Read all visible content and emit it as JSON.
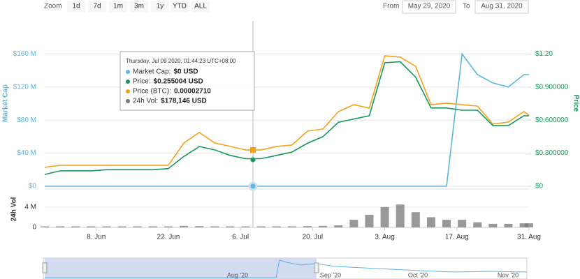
{
  "ui": {
    "zoom_label": "Zoom",
    "buttons": [
      "1d",
      "7d",
      "1m",
      "3m",
      "1y",
      "YTD",
      "ALL"
    ],
    "from_label": "From",
    "from_value": "May 29, 2020",
    "to_label": "To",
    "to_value": "Aug 31, 2020",
    "navigator_labels": [
      "Aug '20",
      "Sep '20",
      "Oct '20",
      "Nov '20"
    ]
  },
  "chart_data": {
    "type": "line",
    "ylabel": "Market Cap",
    "y2label": "Price",
    "vol_label": "24h Vol",
    "x": [
      "2020-05-29",
      "2020-06-01",
      "2020-06-04",
      "2020-06-07",
      "2020-06-10",
      "2020-06-13",
      "2020-06-16",
      "2020-06-19",
      "2020-06-22",
      "2020-06-25",
      "2020-06-28",
      "2020-07-01",
      "2020-07-04",
      "2020-07-07",
      "2020-07-10",
      "2020-07-13",
      "2020-07-16",
      "2020-07-19",
      "2020-07-22",
      "2020-07-25",
      "2020-07-28",
      "2020-07-31",
      "2020-08-03",
      "2020-08-06",
      "2020-08-09",
      "2020-08-12",
      "2020-08-15",
      "2020-08-18",
      "2020-08-21",
      "2020-08-24",
      "2020-08-27",
      "2020-08-30",
      "2020-08-31"
    ],
    "xlim": [
      "2020-05-29",
      "2020-08-31"
    ],
    "xticks": [
      {
        "value": "2020-06-08",
        "label": "8. Jun"
      },
      {
        "value": "2020-06-22",
        "label": "22. Jun"
      },
      {
        "value": "2020-07-06",
        "label": "6. Jul"
      },
      {
        "value": "2020-07-20",
        "label": "20. Jul"
      },
      {
        "value": "2020-08-03",
        "label": "3. Aug"
      },
      {
        "value": "2020-08-17",
        "label": "17. Aug"
      },
      {
        "value": "2020-08-31",
        "label": "31. Aug"
      }
    ],
    "ylim": [
      0,
      200000000
    ],
    "yticks": [
      {
        "value": 0,
        "label": "$0"
      },
      {
        "value": 40000000,
        "label": "$40 M"
      },
      {
        "value": 80000000,
        "label": "$80 M"
      },
      {
        "value": 120000000,
        "label": "$120 M"
      },
      {
        "value": 160000000,
        "label": "$160 M"
      }
    ],
    "y2lim": [
      0,
      1.5
    ],
    "y2ticks": [
      {
        "value": 0,
        "label": "$0"
      },
      {
        "value": 0.3,
        "label": "$0.300000"
      },
      {
        "value": 0.6,
        "label": "$0.600000"
      },
      {
        "value": 0.9,
        "label": "$0.900000"
      },
      {
        "value": 1.2,
        "label": "$1.20"
      }
    ],
    "y3lim": [
      0,
      0.00012
    ],
    "vollim": [
      0,
      7000000
    ],
    "volticks": [
      {
        "value": 0,
        "label": "0"
      },
      {
        "value": 4000000,
        "label": "4 M"
      }
    ],
    "grid": true,
    "series": [
      {
        "color": "#5bb6e3",
        "values": [
          0,
          0,
          0,
          0,
          0,
          0,
          0,
          0,
          0,
          0,
          0,
          0,
          0,
          0,
          0,
          0,
          0,
          0,
          0,
          0,
          0,
          0,
          0,
          0,
          0,
          0,
          0,
          160000000,
          135000000,
          125000000,
          120000000,
          135000000,
          135000000
        ]
      },
      {
        "color": "#17985a",
        "axis": "y2",
        "values": [
          0.107,
          0.14,
          0.14,
          0.14,
          0.15,
          0.15,
          0.15,
          0.15,
          0.16,
          0.27,
          0.36,
          0.33,
          0.28,
          0.25,
          0.25,
          0.28,
          0.31,
          0.39,
          0.45,
          0.58,
          0.61,
          0.64,
          1.12,
          1.13,
          0.99,
          0.71,
          0.71,
          0.69,
          0.69,
          0.55,
          0.55,
          0.64,
          0.64
        ]
      },
      {
        "color": "#f4a11c",
        "axis": "y3",
        "values": [
          1.37e-05,
          1.52e-05,
          1.52e-05,
          1.52e-05,
          1.52e-05,
          1.52e-05,
          1.52e-05,
          1.52e-05,
          1.52e-05,
          3.14e-05,
          3.9e-05,
          3.14e-05,
          2.89e-05,
          2.63e-05,
          2.63e-05,
          2.89e-05,
          2.99e-05,
          4e-05,
          4.15e-05,
          5.42e-05,
          5.92e-05,
          5.67e-05,
          9.47e-05,
          9.37e-05,
          8.71e-05,
          5.92e-05,
          6.03e-05,
          5.92e-05,
          5.82e-05,
          4.51e-05,
          4.66e-05,
          5.42e-05,
          5.16e-05
        ]
      },
      {
        "color": "#777777",
        "axis": "vol",
        "type": "column",
        "values": [
          200000,
          200000,
          200000,
          200000,
          200000,
          200000,
          200000,
          200000,
          200000,
          300000,
          250000,
          200000,
          200000,
          200000,
          200000,
          200000,
          200000,
          250000,
          300000,
          400000,
          1500000,
          2500000,
          4000000,
          4500000,
          3000000,
          2000000,
          1500000,
          1500000,
          1000000,
          700000,
          700000,
          800000,
          800000
        ]
      }
    ],
    "tooltip": {
      "title": "Thursday, Jul 09 2020, 01:44:23 UTC+08:00",
      "rows": [
        {
          "label": "Market Cap:",
          "value": "$0 USD"
        },
        {
          "label": "Price:",
          "value": "$0.255004 USD"
        },
        {
          "label": "Price (BTC):",
          "value": "0.00002710"
        },
        {
          "label": "24h Vol:",
          "value": "$178,146 USD"
        }
      ]
    }
  }
}
